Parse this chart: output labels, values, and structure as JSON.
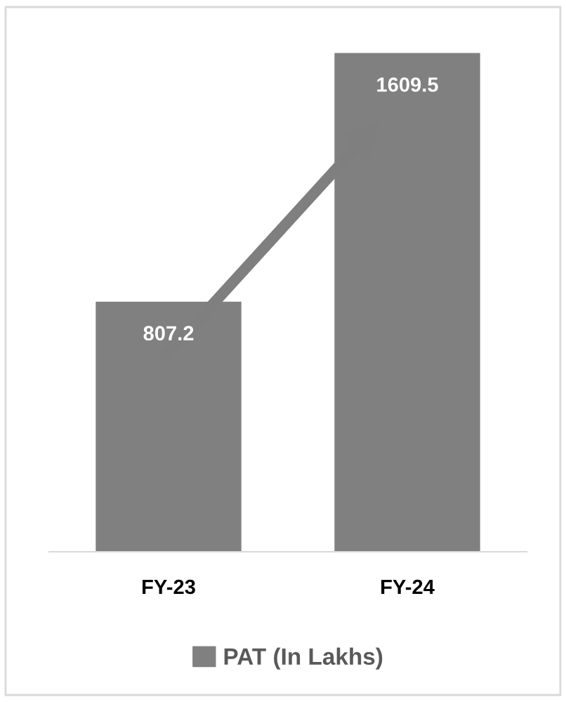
{
  "chart_data": {
    "type": "bar",
    "categories": [
      "FY-23",
      "FY-24"
    ],
    "series": [
      {
        "name": "PAT (In Lakhs)",
        "color": "#808080",
        "values": [
          807.2,
          1609.5
        ]
      }
    ],
    "data_labels": true,
    "legend": "bottom",
    "grid": false
  }
}
